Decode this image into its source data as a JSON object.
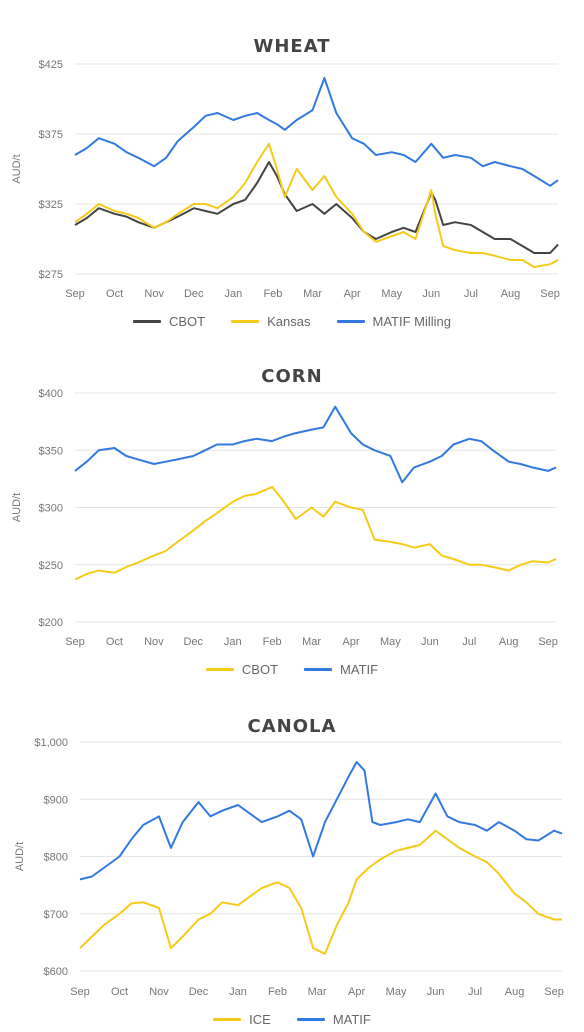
{
  "chart_data": [
    {
      "type": "line",
      "title": "WHEAT",
      "ylabel": "AUD/t",
      "ylim": [
        275,
        425
      ],
      "yticks": [
        275,
        325,
        375,
        425
      ],
      "ytick_labels": [
        "$275",
        "$325",
        "$375",
        "$425"
      ],
      "categories": [
        "Sep",
        "Oct",
        "Nov",
        "Dec",
        "Jan",
        "Feb",
        "Mar",
        "Apr",
        "May",
        "Jun",
        "Jul",
        "Aug",
        "Sep"
      ],
      "xlim": [
        0,
        12.2
      ],
      "legend": "bottom",
      "grid": "horizontal",
      "series": [
        {
          "name": "CBOT",
          "color": "#444444",
          "x": [
            0,
            0.3,
            0.6,
            1,
            1.3,
            1.6,
            2,
            2.3,
            2.6,
            3,
            3.3,
            3.6,
            4,
            4.3,
            4.6,
            4.9,
            5.1,
            5.3,
            5.6,
            6,
            6.3,
            6.6,
            7,
            7.3,
            7.6,
            8,
            8.3,
            8.6,
            9,
            9.1,
            9.3,
            9.6,
            10,
            10.3,
            10.6,
            11,
            11.3,
            11.6,
            12,
            12.2
          ],
          "values": [
            310,
            315,
            322,
            318,
            316,
            312,
            308,
            312,
            316,
            322,
            320,
            318,
            325,
            328,
            340,
            355,
            345,
            332,
            320,
            325,
            318,
            325,
            315,
            305,
            300,
            305,
            308,
            305,
            333,
            328,
            310,
            312,
            310,
            305,
            300,
            300,
            295,
            290,
            290,
            296
          ]
        },
        {
          "name": "Kansas",
          "color": "#f5cb1a",
          "x": [
            0,
            0.3,
            0.6,
            1,
            1.3,
            1.6,
            2,
            2.3,
            2.6,
            3,
            3.3,
            3.6,
            4,
            4.3,
            4.6,
            4.9,
            5.1,
            5.3,
            5.6,
            6,
            6.3,
            6.6,
            7,
            7.3,
            7.6,
            8,
            8.3,
            8.6,
            9,
            9.1,
            9.3,
            9.6,
            10,
            10.3,
            10.6,
            11,
            11.3,
            11.6,
            12,
            12.2
          ],
          "values": [
            312,
            318,
            325,
            320,
            318,
            315,
            308,
            312,
            318,
            325,
            325,
            322,
            330,
            340,
            355,
            368,
            350,
            330,
            350,
            335,
            345,
            330,
            318,
            305,
            298,
            302,
            305,
            300,
            335,
            318,
            295,
            292,
            290,
            290,
            288,
            285,
            285,
            280,
            282,
            285
          ]
        },
        {
          "name": "MATIF Milling",
          "color": "#3279e0",
          "x": [
            0,
            0.3,
            0.6,
            1,
            1.3,
            1.6,
            2,
            2.3,
            2.6,
            3,
            3.3,
            3.6,
            4,
            4.3,
            4.6,
            4.9,
            5.1,
            5.3,
            5.6,
            6,
            6.3,
            6.6,
            7,
            7.3,
            7.6,
            8,
            8.3,
            8.6,
            9,
            9.3,
            9.6,
            10,
            10.3,
            10.6,
            11,
            11.3,
            11.6,
            12,
            12.2
          ],
          "values": [
            360,
            365,
            372,
            368,
            362,
            358,
            352,
            358,
            370,
            380,
            388,
            390,
            385,
            388,
            390,
            385,
            382,
            378,
            385,
            392,
            415,
            390,
            372,
            368,
            360,
            362,
            360,
            355,
            368,
            358,
            360,
            358,
            352,
            355,
            352,
            350,
            345,
            338,
            342
          ]
        }
      ]
    },
    {
      "type": "line",
      "title": "CORN",
      "ylabel": "AUD/t",
      "ylim": [
        200,
        400
      ],
      "yticks": [
        200,
        250,
        300,
        350,
        400
      ],
      "ytick_labels": [
        "$200",
        "$250",
        "$300",
        "$350",
        "$400"
      ],
      "categories": [
        "Sep",
        "Oct",
        "Nov",
        "Dec",
        "Jan",
        "Feb",
        "Mar",
        "Apr",
        "May",
        "Jun",
        "Jul",
        "Aug",
        "Sep"
      ],
      "xlim": [
        0,
        12.2
      ],
      "legend": "bottom",
      "grid": "horizontal",
      "series": [
        {
          "name": "CBOT",
          "color": "#f5cb1a",
          "x": [
            0,
            0.3,
            0.6,
            1,
            1.3,
            1.6,
            2,
            2.3,
            2.6,
            3,
            3.3,
            3.6,
            4,
            4.3,
            4.6,
            5,
            5.3,
            5.6,
            6,
            6.3,
            6.6,
            7,
            7.3,
            7.6,
            8,
            8.3,
            8.6,
            9,
            9.3,
            9.6,
            10,
            10.3,
            10.6,
            11,
            11.3,
            11.6,
            12,
            12.2
          ],
          "values": [
            237,
            242,
            245,
            243,
            248,
            252,
            258,
            262,
            270,
            280,
            288,
            295,
            305,
            310,
            312,
            318,
            305,
            290,
            300,
            292,
            305,
            300,
            298,
            272,
            270,
            268,
            265,
            268,
            258,
            255,
            250,
            250,
            248,
            245,
            250,
            253,
            252,
            255
          ]
        },
        {
          "name": "MATIF",
          "color": "#3279e0",
          "x": [
            0,
            0.3,
            0.6,
            1,
            1.3,
            1.6,
            2,
            2.3,
            2.6,
            3,
            3.3,
            3.6,
            4,
            4.3,
            4.6,
            5,
            5.3,
            5.6,
            6,
            6.3,
            6.6,
            7,
            7.3,
            7.6,
            8,
            8.3,
            8.6,
            9,
            9.3,
            9.6,
            10,
            10.3,
            10.6,
            11,
            11.3,
            11.6,
            12,
            12.2
          ],
          "values": [
            332,
            340,
            350,
            352,
            345,
            342,
            338,
            340,
            342,
            345,
            350,
            355,
            355,
            358,
            360,
            358,
            362,
            365,
            368,
            370,
            388,
            365,
            355,
            350,
            345,
            322,
            335,
            340,
            345,
            355,
            360,
            358,
            350,
            340,
            338,
            335,
            332,
            335
          ]
        }
      ]
    },
    {
      "type": "line",
      "title": "CANOLA",
      "ylabel": "AUD/t",
      "ylim": [
        600,
        1000
      ],
      "yticks": [
        600,
        700,
        800,
        900,
        1000
      ],
      "ytick_labels": [
        "$600",
        "$700",
        "$800",
        "$900",
        "$1,000"
      ],
      "categories": [
        "Sep",
        "Oct",
        "Nov",
        "Dec",
        "Jan",
        "Feb",
        "Mar",
        "Apr",
        "May",
        "Jun",
        "Jul",
        "Aug",
        "Sep"
      ],
      "xlim": [
        0,
        12.2
      ],
      "legend": "bottom",
      "grid": "horizontal",
      "series": [
        {
          "name": "ICE",
          "color": "#f5cb1a",
          "x": [
            0,
            0.3,
            0.6,
            1,
            1.3,
            1.6,
            2,
            2.3,
            2.6,
            3,
            3.3,
            3.6,
            4,
            4.3,
            4.6,
            5,
            5.3,
            5.6,
            5.9,
            6.2,
            6.5,
            6.8,
            7,
            7.3,
            7.6,
            8,
            8.3,
            8.6,
            9,
            9.3,
            9.6,
            10,
            10.3,
            10.6,
            11,
            11.3,
            11.6,
            12,
            12.2
          ],
          "values": [
            640,
            660,
            680,
            700,
            718,
            720,
            710,
            640,
            660,
            690,
            700,
            720,
            715,
            730,
            745,
            755,
            745,
            710,
            640,
            630,
            680,
            720,
            760,
            780,
            795,
            810,
            815,
            820,
            845,
            830,
            815,
            800,
            790,
            770,
            735,
            720,
            700,
            690,
            690
          ]
        },
        {
          "name": "MATIF",
          "color": "#3279e0",
          "x": [
            0,
            0.3,
            0.6,
            1,
            1.3,
            1.6,
            2,
            2.3,
            2.6,
            3,
            3.3,
            3.6,
            4,
            4.3,
            4.6,
            5,
            5.3,
            5.6,
            5.9,
            6.2,
            6.5,
            6.8,
            7,
            7.2,
            7.4,
            7.6,
            8,
            8.3,
            8.6,
            9,
            9.3,
            9.6,
            10,
            10.3,
            10.6,
            11,
            11.3,
            11.6,
            12,
            12.2
          ],
          "values": [
            760,
            765,
            780,
            800,
            830,
            855,
            870,
            815,
            860,
            895,
            870,
            880,
            890,
            875,
            860,
            870,
            880,
            865,
            800,
            860,
            900,
            940,
            965,
            950,
            860,
            855,
            860,
            865,
            860,
            910,
            870,
            860,
            855,
            845,
            860,
            845,
            830,
            828,
            845,
            840
          ]
        }
      ]
    }
  ]
}
